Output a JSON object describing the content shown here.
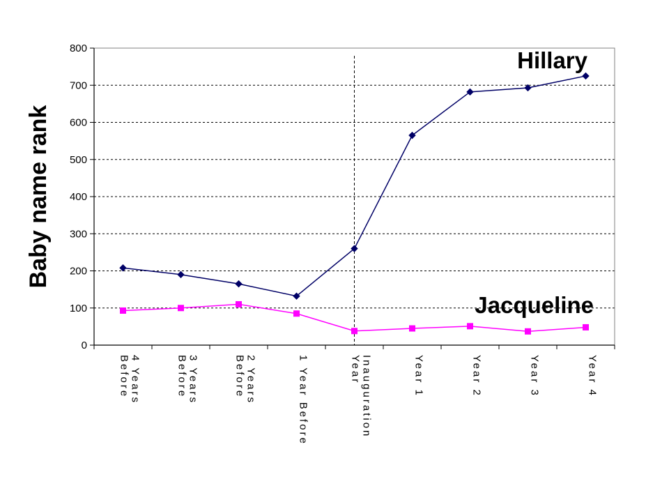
{
  "chart_data": {
    "type": "line",
    "ylabel": "Baby name rank",
    "xlabel": "",
    "ylim": [
      0,
      800
    ],
    "yticks": [
      0,
      100,
      200,
      300,
      400,
      500,
      600,
      700,
      800
    ],
    "grid": "horizontal dashed",
    "categories": [
      [
        "4 Years",
        "Before"
      ],
      [
        "3 Years",
        "Before"
      ],
      [
        "2 Years",
        "Before"
      ],
      [
        "1 Year Before"
      ],
      [
        "Inauguration",
        "Year"
      ],
      [
        "Year 1"
      ],
      [
        "Year 2"
      ],
      [
        "Year 3"
      ],
      [
        "Year 4"
      ]
    ],
    "reference_line_category_index": 4,
    "series": [
      {
        "name": "Hillary",
        "color": "#000066",
        "marker": "diamond",
        "values": [
          208,
          190,
          165,
          132,
          260,
          565,
          682,
          693,
          725
        ]
      },
      {
        "name": "Jacqueline",
        "color": "#ff00ff",
        "marker": "square",
        "values": [
          93,
          100,
          110,
          85,
          38,
          45,
          51,
          37,
          48
        ]
      }
    ]
  }
}
